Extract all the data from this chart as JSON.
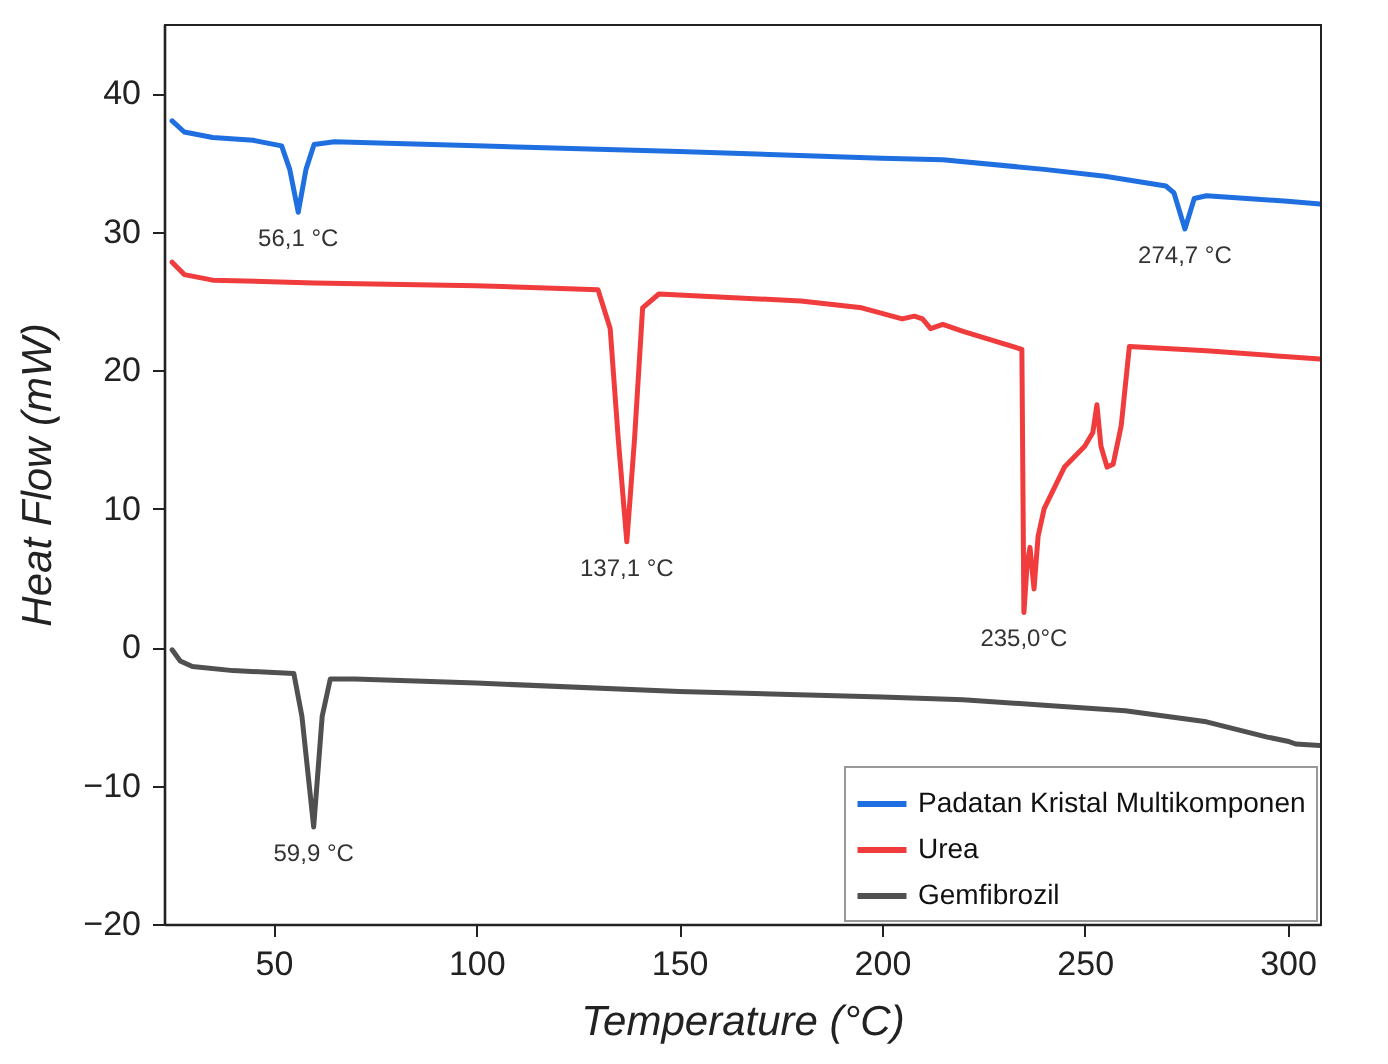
{
  "chart_data": {
    "type": "line",
    "xlabel": "Temperature (°C)",
    "ylabel": "Heat Flow (mW)",
    "xlim": [
      23,
      308
    ],
    "xticks": [
      50,
      100,
      150,
      200,
      250,
      300
    ],
    "ylim": [
      -20,
      45
    ],
    "yticks": [
      -20,
      -10,
      0,
      10,
      20,
      30,
      40
    ],
    "grid": false,
    "legend": "bottom right",
    "line_style": "solid",
    "marker": "none",
    "series": [
      {
        "name": "Padatan Kristal Multikomponen",
        "color": "#1f6fe0",
        "x": [
          25,
          28,
          35,
          45,
          52,
          54,
          56.1,
          58,
          60,
          65,
          100,
          150,
          200,
          215,
          240,
          255,
          270,
          272,
          274.7,
          277,
          280,
          290,
          300,
          308
        ],
        "values": [
          38,
          37.2,
          36.8,
          36.6,
          36.2,
          34.5,
          31.4,
          34.5,
          36.3,
          36.5,
          36.2,
          35.8,
          35.3,
          35.2,
          34.5,
          34,
          33.3,
          32.8,
          30.2,
          32.4,
          32.6,
          32.4,
          32.2,
          32
        ]
      },
      {
        "name": "Urea",
        "color": "#f03c3c",
        "x": [
          25,
          28,
          35,
          60,
          100,
          130,
          133,
          135,
          137.1,
          139,
          141,
          145,
          180,
          195,
          205,
          208,
          210,
          212,
          215,
          220,
          234.5,
          235,
          235.8,
          236.5,
          237.5,
          238.5,
          240,
          245,
          250,
          252,
          253,
          254,
          255.5,
          257,
          259,
          261,
          280,
          308
        ],
        "values": [
          27.8,
          26.9,
          26.5,
          26.3,
          26.1,
          25.8,
          23,
          15,
          7.6,
          15,
          24.5,
          25.5,
          25,
          24.5,
          23.7,
          23.9,
          23.7,
          23,
          23.3,
          22.8,
          21.5,
          2.5,
          6,
          7.2,
          4.2,
          8,
          10,
          13,
          14.5,
          15.5,
          17.5,
          14.5,
          13,
          13.2,
          16,
          21.7,
          21.4,
          20.8
        ]
      },
      {
        "name": "Gemfibrozil",
        "color": "#505050",
        "x": [
          25,
          27,
          30,
          40,
          55,
          57,
          59.9,
          62,
          64,
          70,
          100,
          150,
          200,
          220,
          240,
          260,
          280,
          295,
          300,
          302,
          308
        ],
        "values": [
          -0.2,
          -1,
          -1.4,
          -1.7,
          -1.9,
          -5,
          -13,
          -5,
          -2.3,
          -2.3,
          -2.6,
          -3.2,
          -3.6,
          -3.8,
          -4.2,
          -4.6,
          -5.4,
          -6.5,
          -6.8,
          -7,
          -7.1
        ]
      }
    ],
    "annotations": [
      {
        "text": "56,1 °C",
        "x": 56.1,
        "y": 31.4
      },
      {
        "text": "274,7 °C",
        "x": 274.7,
        "y": 30.2
      },
      {
        "text": "137,1 °C",
        "x": 137.1,
        "y": 7.6
      },
      {
        "text": "235,0°C",
        "x": 235,
        "y": 2.5
      },
      {
        "text": "59,9 °C",
        "x": 59.9,
        "y": -13
      }
    ]
  }
}
